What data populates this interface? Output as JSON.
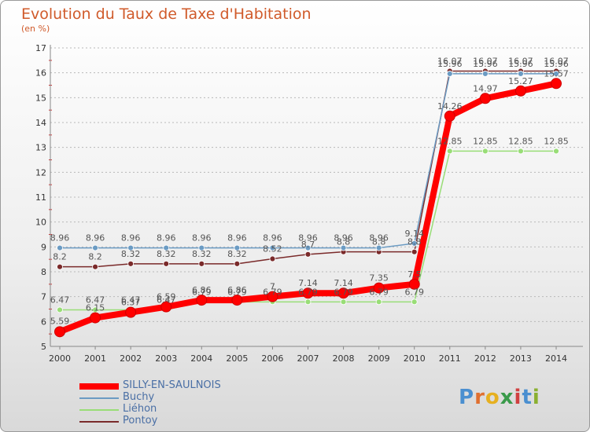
{
  "title": "Evolution du Taux de Taxe d'Habitation",
  "subtitle": "(en %)",
  "brand": {
    "p": "P",
    "r": "r",
    "o": "o",
    "x": "x",
    "i": "i",
    "t": "t",
    "i2": "i"
  },
  "colors": {
    "silly": "#ff0000",
    "buchy": "#6b9bc3",
    "liehon": "#99dd77",
    "pontoy": "#7a2a2a",
    "grid": "#b9b9b9",
    "axis": "#888888"
  },
  "chart_data": {
    "type": "line",
    "x": [
      2000,
      2001,
      2002,
      2003,
      2004,
      2005,
      2006,
      2007,
      2008,
      2009,
      2010,
      2011,
      2012,
      2013,
      2014
    ],
    "ylim": [
      5,
      17
    ],
    "yticks": [
      5,
      6,
      7,
      8,
      9,
      10,
      11,
      12,
      13,
      14,
      15,
      16,
      17
    ],
    "grid": "horizontal dashed",
    "legend_position": "bottom-left",
    "series": [
      {
        "name": "SILLY-EN-SAULNOIS",
        "color": "#ff0000",
        "values": [
          5.59,
          6.15,
          6.37,
          6.59,
          6.86,
          6.86,
          7.0,
          7.14,
          7.14,
          7.35,
          7.5,
          14.26,
          14.97,
          15.27,
          15.57
        ],
        "labels": [
          "5.59",
          "6.15",
          "6.37",
          "6.59",
          "6.86",
          "6.86",
          "7",
          "7.14",
          "7.14",
          "7.35",
          "7.5",
          "14.26",
          "14.97",
          "15.27",
          "15.57"
        ]
      },
      {
        "name": "Buchy",
        "color": "#6b9bc3",
        "values": [
          8.96,
          8.96,
          8.96,
          8.96,
          8.96,
          8.96,
          8.96,
          8.96,
          8.96,
          8.96,
          9.14,
          15.96,
          15.96,
          15.96,
          15.96
        ],
        "labels": [
          "8.96",
          "8.96",
          "8.96",
          "8.96",
          "8.96",
          "8.96",
          "8.96",
          "8.96",
          "8.96",
          "8.96",
          "9.14",
          "15.96",
          "15.96",
          "15.96",
          "15.96"
        ]
      },
      {
        "name": "Liéhon",
        "color": "#99dd77",
        "values": [
          6.47,
          6.47,
          6.47,
          6.47,
          6.79,
          6.79,
          6.79,
          6.79,
          6.79,
          6.79,
          6.79,
          12.85,
          12.85,
          12.85,
          12.85
        ],
        "labels": [
          "6.47",
          "6.47",
          "6.47",
          "6.47",
          "6.79",
          "6.79",
          "6.79",
          "6.79",
          "6.79",
          "6.79",
          "6.79",
          "12.85",
          "12.85",
          "12.85",
          "12.85"
        ]
      },
      {
        "name": "Pontoy",
        "color": "#7a2a2a",
        "values": [
          8.2,
          8.2,
          8.32,
          8.32,
          8.32,
          8.32,
          8.52,
          8.7,
          8.8,
          8.8,
          8.8,
          16.07,
          16.07,
          16.07,
          16.07
        ],
        "labels": [
          "8.2",
          "8.2",
          "8.32",
          "8.32",
          "8.32",
          "8.32",
          "8.52",
          "8.7",
          "8.8",
          "8.8",
          "8.8",
          "16.07",
          "16.07",
          "16.07",
          "16.07"
        ]
      }
    ]
  }
}
